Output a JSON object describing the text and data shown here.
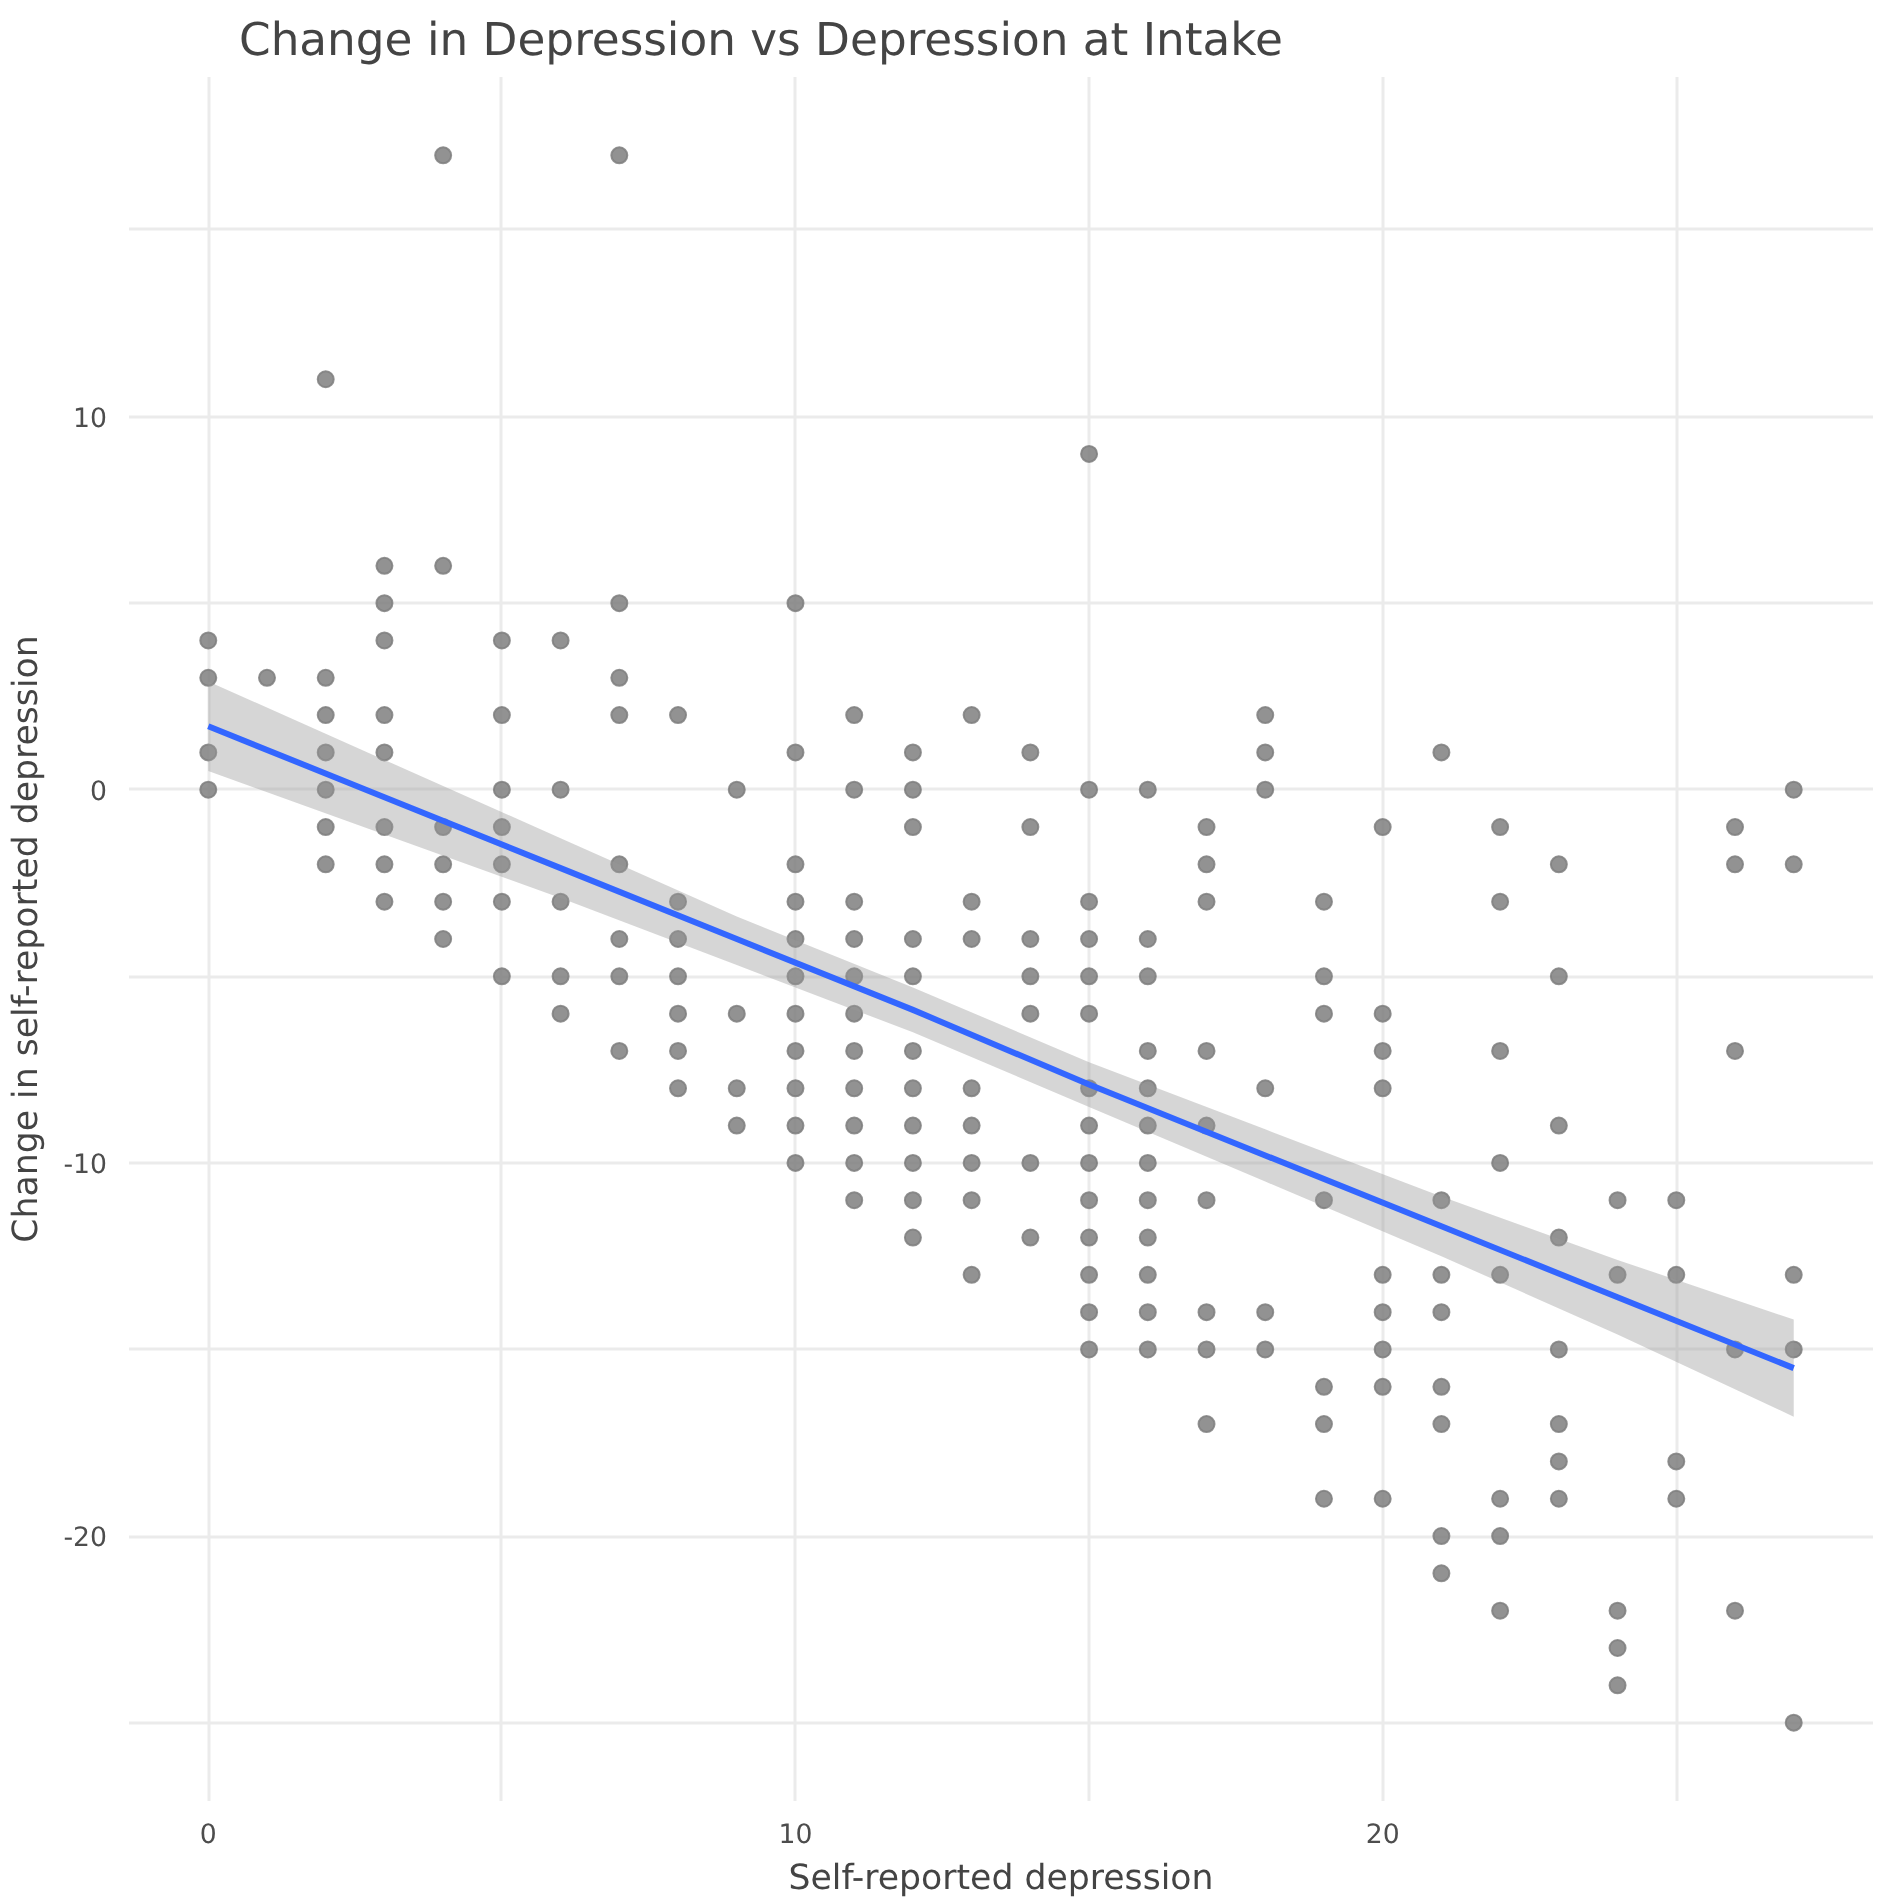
{
  "chart_data": {
    "type": "scatter",
    "title": "Change in Depression vs Depression at Intake",
    "xlabel": "Self-reported depression",
    "ylabel": "Change in self-reported depression",
    "xlim": [
      -1.35,
      28.35
    ],
    "ylim": [
      -27.1,
      19.1
    ],
    "xticks": [
      0,
      {
        "value": 5,
        "label": null
      },
      10,
      {
        "value": 15,
        "label": null
      },
      20,
      {
        "value": 25,
        "label": null
      }
    ],
    "yticks": [
      {
        "value": -25,
        "label": null
      },
      -20,
      {
        "value": -15,
        "label": null
      },
      -10,
      {
        "value": -5,
        "label": null
      },
      0,
      {
        "value": 5,
        "label": null
      },
      10,
      {
        "value": 15,
        "label": null
      }
    ],
    "grid": true,
    "series": [
      {
        "color": "#7f7f7f",
        "marker": "circle",
        "x": [
          0,
          0,
          0,
          0,
          1,
          2,
          2,
          2,
          2,
          2,
          2,
          2,
          3,
          3,
          3,
          3,
          3,
          3,
          3,
          3,
          4,
          4,
          4,
          4,
          4,
          4,
          5,
          5,
          5,
          5,
          5,
          5,
          5,
          6,
          6,
          6,
          6,
          6,
          7,
          7,
          7,
          7,
          7,
          7,
          7,
          7,
          8,
          8,
          8,
          8,
          8,
          8,
          8,
          9,
          9,
          9,
          9,
          10,
          10,
          10,
          10,
          10,
          10,
          10,
          10,
          10,
          10,
          10,
          11,
          11,
          11,
          11,
          11,
          11,
          11,
          11,
          11,
          11,
          11,
          12,
          12,
          12,
          12,
          12,
          12,
          12,
          12,
          12,
          12,
          12,
          13,
          13,
          13,
          13,
          13,
          13,
          13,
          13,
          14,
          14,
          14,
          14,
          14,
          14,
          14,
          15,
          15,
          15,
          15,
          15,
          15,
          15,
          15,
          15,
          15,
          15,
          15,
          15,
          15,
          16,
          16,
          16,
          16,
          16,
          16,
          16,
          16,
          16,
          16,
          16,
          16,
          17,
          17,
          17,
          17,
          17,
          17,
          17,
          17,
          17,
          18,
          18,
          18,
          18,
          18,
          18,
          19,
          19,
          19,
          19,
          19,
          19,
          19,
          20,
          20,
          20,
          20,
          20,
          20,
          20,
          20,
          20,
          21,
          21,
          21,
          21,
          21,
          21,
          21,
          21,
          22,
          22,
          22,
          22,
          22,
          22,
          22,
          22,
          23,
          23,
          23,
          23,
          23,
          23,
          23,
          23,
          24,
          24,
          24,
          24,
          24,
          25,
          25,
          25,
          25,
          26,
          26,
          26,
          26,
          26,
          27,
          27,
          27,
          27,
          27
        ],
        "values": [
          4,
          3,
          1,
          0,
          3,
          11,
          3,
          2,
          1,
          0,
          -1,
          -2,
          6,
          5,
          4,
          2,
          1,
          -1,
          -2,
          -3,
          17,
          6,
          -1,
          -2,
          -3,
          -4,
          4,
          2,
          0,
          -1,
          -2,
          -3,
          -5,
          4,
          0,
          -3,
          -5,
          -6,
          17,
          5,
          3,
          2,
          -2,
          -4,
          -5,
          -7,
          2,
          -3,
          -4,
          -5,
          -6,
          -7,
          -8,
          0,
          -6,
          -8,
          -9,
          5,
          1,
          -2,
          -3,
          -4,
          -5,
          -6,
          -7,
          -8,
          -9,
          -10,
          2,
          0,
          -3,
          -4,
          -5,
          -6,
          -7,
          -8,
          -9,
          -10,
          -11,
          1,
          0,
          -1,
          -4,
          -5,
          -7,
          -8,
          -9,
          -10,
          -11,
          -12,
          2,
          -3,
          -4,
          -8,
          -9,
          -10,
          -11,
          -13,
          1,
          -1,
          -4,
          -5,
          -6,
          -10,
          -12,
          9,
          0,
          -3,
          -4,
          -5,
          -6,
          -8,
          -9,
          -10,
          -11,
          -12,
          -13,
          -14,
          -15,
          0,
          -4,
          -5,
          -7,
          -8,
          -9,
          -10,
          -11,
          -12,
          -13,
          -14,
          -15,
          -1,
          -2,
          -3,
          -7,
          -9,
          -11,
          -14,
          -15,
          -17,
          2,
          1,
          0,
          -8,
          -14,
          -15,
          -3,
          -5,
          -6,
          -11,
          -16,
          -17,
          -19,
          -1,
          -6,
          -7,
          -8,
          -13,
          -14,
          -15,
          -16,
          -19,
          1,
          -11,
          -13,
          -14,
          -16,
          -17,
          -20,
          -21,
          -1,
          -3,
          -7,
          -10,
          -13,
          -19,
          -20,
          -22,
          -2,
          -5,
          -9,
          -12,
          -15,
          -17,
          -18,
          -19,
          -11,
          -13,
          -22,
          -23,
          -24,
          -11,
          -13,
          -18,
          -19,
          -1,
          -2,
          -7,
          -15,
          -22,
          0,
          -2,
          -13,
          -15,
          -25
        ]
      },
      {
        "type": "line",
        "color": "#3366ff",
        "x": [
          0,
          3,
          6,
          9,
          12,
          15,
          18,
          21,
          24,
          27
        ],
        "values": [
          1.7,
          -0.2,
          -2.1,
          -4.0,
          -5.9,
          -7.9,
          -9.8,
          -11.7,
          -13.6,
          -15.5
        ],
        "lower": [
          0.5,
          -1.2,
          -2.9,
          -4.7,
          -6.5,
          -8.5,
          -10.5,
          -12.5,
          -14.6,
          -16.8
        ],
        "upper": [
          2.9,
          0.8,
          -1.3,
          -3.4,
          -5.3,
          -7.3,
          -9.1,
          -10.9,
          -12.6,
          -14.2
        ]
      }
    ]
  }
}
